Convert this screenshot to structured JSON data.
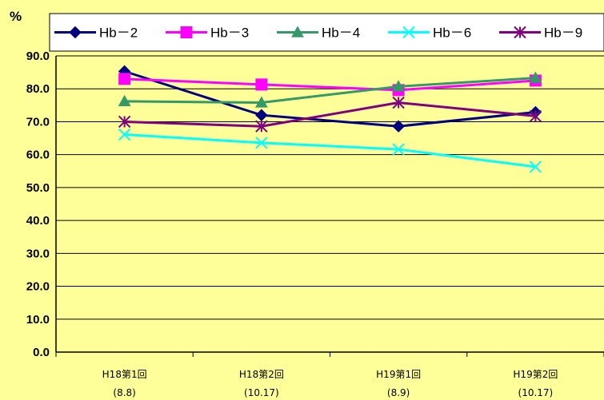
{
  "chart_data": {
    "type": "line",
    "unit_label": "%",
    "categories": [
      {
        "label": "H18第1回",
        "sublabel": "(8.8)"
      },
      {
        "label": "H18第2回",
        "sublabel": "(10.17)"
      },
      {
        "label": "H19第1回",
        "sublabel": "(8.9)"
      },
      {
        "label": "H19第2回",
        "sublabel": "(10.17)"
      }
    ],
    "ylim": [
      0,
      90
    ],
    "yticks": [
      "0.0",
      "10.0",
      "20.0",
      "30.0",
      "40.0",
      "50.0",
      "60.0",
      "70.0",
      "80.0",
      "90.0"
    ],
    "grid": true,
    "legend_position": "top",
    "series": [
      {
        "name": "Hb－2",
        "color": "#000080",
        "marker": "diamond",
        "values": [
          85.3,
          72.0,
          68.6,
          72.9
        ]
      },
      {
        "name": "Hb－3",
        "color": "#FF00FF",
        "marker": "square",
        "values": [
          83.0,
          81.3,
          79.6,
          82.5
        ]
      },
      {
        "name": "Hb－4",
        "color": "#339966",
        "marker": "triangle",
        "values": [
          76.2,
          75.8,
          80.7,
          83.3
        ]
      },
      {
        "name": "Hb－6",
        "color": "#00FFFF",
        "marker": "x",
        "values": [
          66.1,
          63.6,
          61.6,
          56.3
        ]
      },
      {
        "name": "Hb－9",
        "color": "#800080",
        "marker": "asterisk",
        "values": [
          70.0,
          68.6,
          75.8,
          71.7
        ]
      }
    ]
  }
}
